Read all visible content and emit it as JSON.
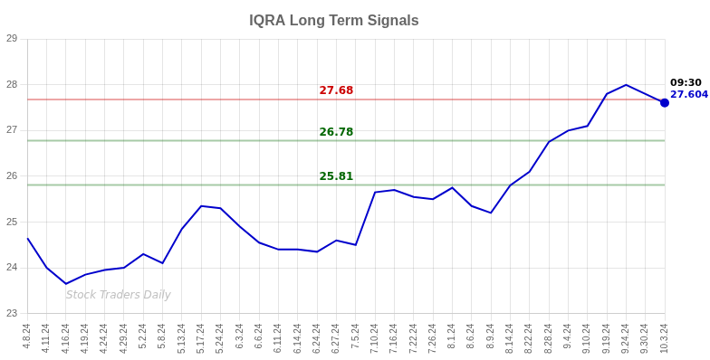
{
  "chart_data": {
    "type": "line",
    "title": "IQRA Long Term Signals",
    "categories": [
      "4.8.24",
      "4.11.24",
      "4.16.24",
      "4.19.24",
      "4.24.24",
      "4.29.24",
      "5.2.24",
      "5.8.24",
      "5.13.24",
      "5.17.24",
      "5.24.24",
      "6.3.24",
      "6.6.24",
      "6.11.24",
      "6.14.24",
      "6.24.24",
      "6.27.24",
      "7.5.24",
      "7.10.24",
      "7.16.24",
      "7.22.24",
      "7.26.24",
      "8.1.24",
      "8.6.24",
      "8.9.24",
      "8.14.24",
      "8.22.24",
      "8.28.24",
      "9.4.24",
      "9.10.24",
      "9.19.24",
      "9.24.24",
      "9.30.24",
      "10.3.24"
    ],
    "values": [
      24.65,
      24.0,
      23.65,
      23.85,
      23.95,
      24.0,
      24.3,
      24.1,
      24.85,
      25.35,
      25.3,
      24.9,
      24.55,
      24.4,
      24.4,
      24.35,
      24.6,
      24.5,
      25.65,
      25.7,
      25.55,
      25.5,
      25.75,
      25.35,
      25.2,
      25.8,
      26.1,
      26.75,
      27.0,
      27.1,
      27.8,
      28.0,
      27.8,
      27.604
    ],
    "color": "#0000cc",
    "ylim": [
      23,
      29
    ],
    "yticks": [
      23,
      24,
      25,
      26,
      27,
      28,
      29
    ],
    "grid": true,
    "hlines": [
      {
        "value": 27.68,
        "label": "27.68",
        "color": "#cc0000"
      },
      {
        "value": 26.78,
        "label": "26.78",
        "color": "#006600"
      },
      {
        "value": 25.81,
        "label": "25.81",
        "color": "#006600"
      }
    ],
    "annotations": [
      {
        "text": "09:30",
        "x": "10.3.24",
        "y": 27.604,
        "color": "#000000"
      },
      {
        "text": "27.604",
        "x": "10.3.24",
        "y": 27.604,
        "color": "#0000cc"
      },
      {
        "text": "Stock Traders Daily",
        "x": "4.16.24",
        "y": 23.28,
        "color": "#c0c0c0"
      }
    ]
  }
}
